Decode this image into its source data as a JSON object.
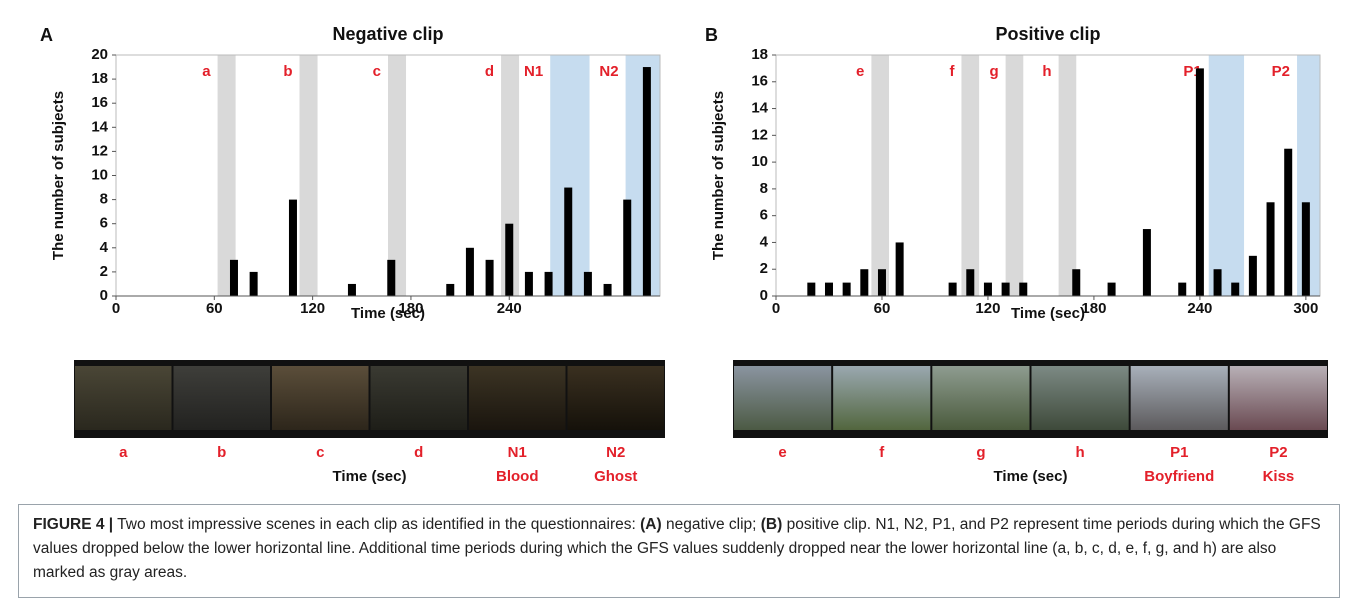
{
  "chart_data": [
    {
      "type": "bar",
      "panel": "A",
      "title": "Negative clip",
      "x_label": "Time (sec)",
      "y_label": "The number of subjects",
      "color": "#000000",
      "x": [
        72,
        84,
        108,
        144,
        168,
        204,
        216,
        228,
        240,
        252,
        264,
        276,
        288,
        300,
        312,
        324
      ],
      "values": [
        3,
        2,
        8,
        1,
        3,
        1,
        4,
        3,
        6,
        2,
        2,
        9,
        2,
        1,
        8,
        19
      ],
      "xlim": [
        0,
        332
      ],
      "xticks": [
        0,
        60,
        120,
        180,
        240
      ],
      "ylim": [
        0,
        20
      ],
      "yticks": [
        0,
        2,
        4,
        6,
        8,
        10,
        12,
        14,
        16,
        18,
        20
      ],
      "shaded": [
        {
          "label": "a",
          "start": 62,
          "end": 73,
          "color": "#d9d9d9"
        },
        {
          "label": "b",
          "start": 112,
          "end": 123,
          "color": "#d9d9d9"
        },
        {
          "label": "c",
          "start": 166,
          "end": 177,
          "color": "#d9d9d9"
        },
        {
          "label": "d",
          "start": 235,
          "end": 246,
          "color": "#d9d9d9"
        },
        {
          "label": "N1",
          "start": 265,
          "end": 289,
          "color": "#c6dcef"
        },
        {
          "label": "N2",
          "start": 311,
          "end": 332,
          "color": "#c6dcef"
        }
      ]
    },
    {
      "type": "bar",
      "panel": "B",
      "title": "Positive clip",
      "x_label": "Time (sec)",
      "y_label": "The number of subjects",
      "color": "#000000",
      "x": [
        20,
        30,
        40,
        50,
        60,
        70,
        100,
        110,
        120,
        130,
        140,
        170,
        190,
        210,
        230,
        240,
        250,
        260,
        270,
        280,
        290,
        300
      ],
      "values": [
        1,
        1,
        1,
        2,
        2,
        4,
        1,
        2,
        1,
        1,
        1,
        2,
        1,
        5,
        1,
        17,
        2,
        1,
        3,
        7,
        11,
        7
      ],
      "xlim": [
        0,
        308
      ],
      "xticks": [
        0,
        60,
        120,
        180,
        240,
        300
      ],
      "ylim": [
        0,
        18
      ],
      "yticks": [
        0,
        2,
        4,
        6,
        8,
        10,
        12,
        14,
        16,
        18
      ],
      "shaded": [
        {
          "label": "e",
          "start": 54,
          "end": 64,
          "color": "#d9d9d9"
        },
        {
          "label": "f",
          "start": 105,
          "end": 115,
          "color": "#d9d9d9"
        },
        {
          "label": "g",
          "start": 130,
          "end": 140,
          "color": "#d9d9d9"
        },
        {
          "label": "h",
          "start": 160,
          "end": 170,
          "color": "#d9d9d9"
        },
        {
          "label": "P1",
          "start": 245,
          "end": 265,
          "color": "#c6dcef"
        },
        {
          "label": "P2",
          "start": 295,
          "end": 308,
          "color": "#c6dcef"
        }
      ]
    }
  ],
  "scenes": [
    {
      "axis_label": "Time (sec)",
      "items": [
        {
          "label": "a"
        },
        {
          "label": "b"
        },
        {
          "label": "c"
        },
        {
          "label": "d"
        },
        {
          "label": "N1",
          "name": "Blood"
        },
        {
          "label": "N2",
          "name": "Ghost"
        }
      ]
    },
    {
      "axis_label": "Time (sec)",
      "items": [
        {
          "label": "e"
        },
        {
          "label": "f"
        },
        {
          "label": "g"
        },
        {
          "label": "h"
        },
        {
          "label": "P1",
          "name": "Boyfriend"
        },
        {
          "label": "P2",
          "name": "Kiss"
        }
      ]
    }
  ],
  "caption": {
    "label": "FIGURE 4 |",
    "segments": [
      {
        "text": " Two most impressive scenes in each clip as identified in the questionnaires: "
      },
      {
        "text": "(A)",
        "bold": true
      },
      {
        "text": " negative clip; "
      },
      {
        "text": "(B)",
        "bold": true
      },
      {
        "text": " positive clip. N1, N2, P1, and P2 represent time periods during which the GFS values dropped below the lower horizontal line. Additional time periods during which the GFS values suddenly dropped near the lower horizontal line (a, b, c, d, e, f, g, and h) are also marked as gray areas."
      }
    ]
  }
}
